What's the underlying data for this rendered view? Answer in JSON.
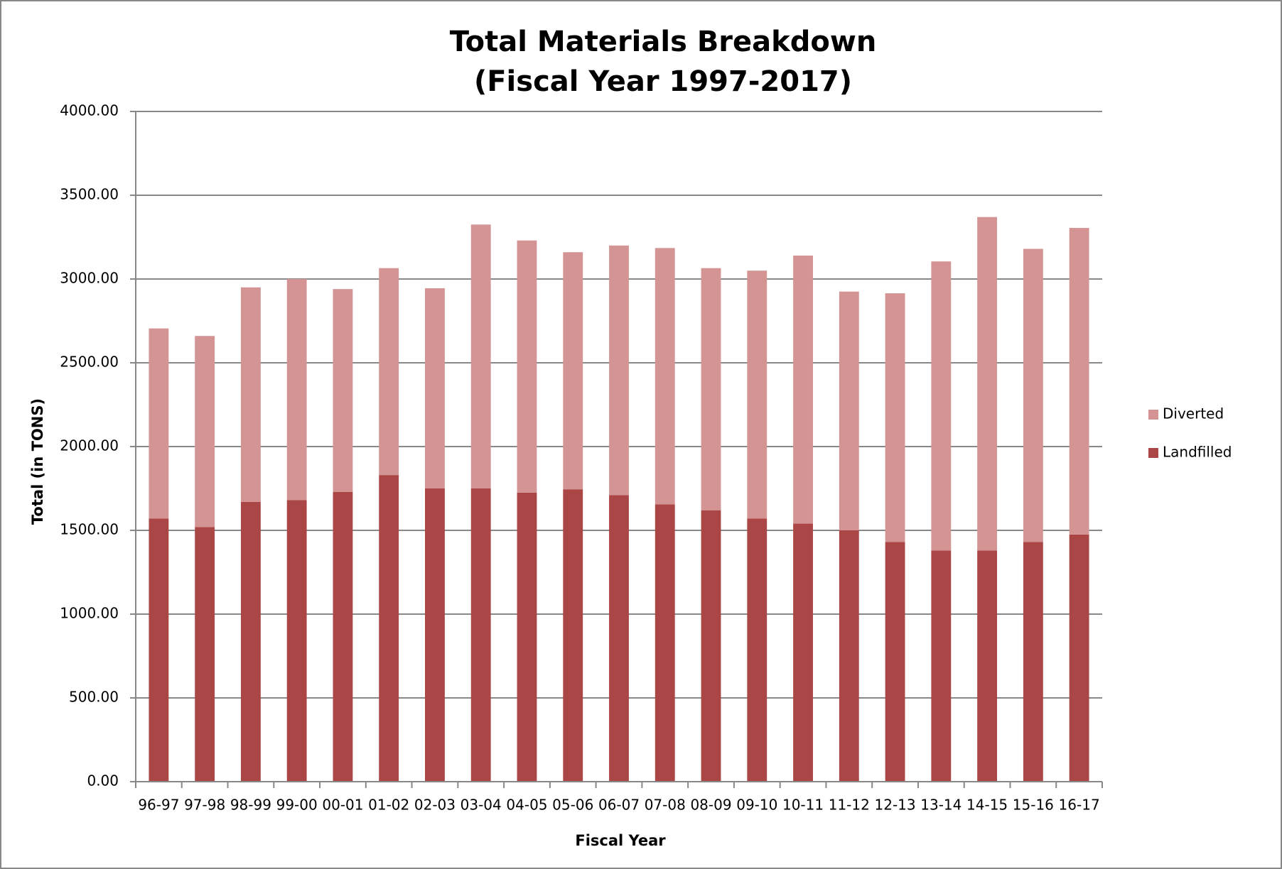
{
  "chart_data": {
    "type": "stacked_bar",
    "title": "Total Materials Breakdown",
    "subtitle": "(Fiscal Year 1997-2017)",
    "x_label": "Fiscal Year",
    "y_label": "Total (in TONS)",
    "categories": [
      "96-97",
      "97-98",
      "98-99",
      "99-00",
      "00-01",
      "01-02",
      "02-03",
      "03-04",
      "04-05",
      "05-06",
      "06-07",
      "07-08",
      "08-09",
      "09-10",
      "10-11",
      "11-12",
      "12-13",
      "13-14",
      "14-15",
      "15-16",
      "16-17"
    ],
    "series": [
      {
        "name": "Landfilled",
        "color": "#ab4646",
        "values": [
          1570,
          1520,
          1670,
          1680,
          1730,
          1830,
          1750,
          1750,
          1725,
          1745,
          1710,
          1655,
          1620,
          1570,
          1540,
          1500,
          1430,
          1380,
          1380,
          1430,
          1475
        ]
      },
      {
        "name": "Diverted",
        "color": "#d49494",
        "values": [
          1135,
          1140,
          1280,
          1320,
          1210,
          1235,
          1195,
          1575,
          1505,
          1415,
          1490,
          1530,
          1445,
          1480,
          1600,
          1425,
          1485,
          1725,
          1990,
          1750,
          1830
        ]
      }
    ],
    "ylim": [
      0,
      4000
    ],
    "yticks": [
      {
        "value": 0,
        "label": "0.00"
      },
      {
        "value": 500,
        "label": "500.00"
      },
      {
        "value": 1000,
        "label": "1000.00"
      },
      {
        "value": 1500,
        "label": "1500.00"
      },
      {
        "value": 2000,
        "label": "2000.00"
      },
      {
        "value": 2500,
        "label": "2500.00"
      },
      {
        "value": 3000,
        "label": "3000.00"
      },
      {
        "value": 3500,
        "label": "3500.00"
      },
      {
        "value": 4000,
        "label": "4000.00"
      }
    ],
    "grid": true,
    "legend": "right"
  }
}
